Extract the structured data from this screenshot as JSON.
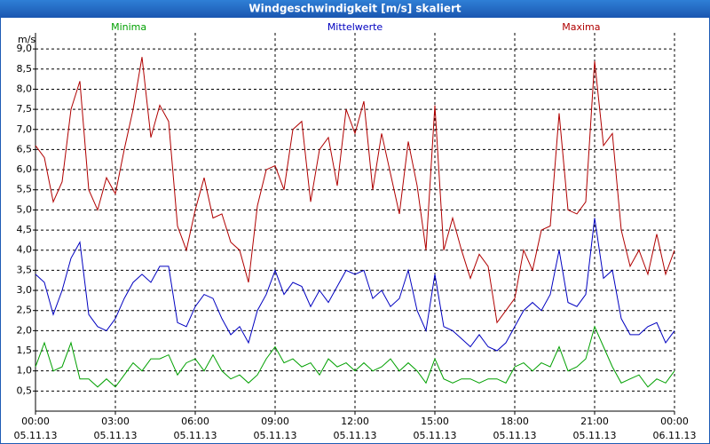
{
  "chart_data": {
    "type": "line",
    "title": "Windgeschwindigkeit [m/s] skaliert",
    "y_unit": "m/s",
    "x": [
      0,
      20,
      40,
      60,
      80,
      100,
      120,
      140,
      160,
      180,
      200,
      220,
      240,
      260,
      280,
      300,
      320,
      340,
      360,
      380,
      400,
      420,
      440,
      460,
      480,
      500,
      520,
      540,
      560,
      580,
      600,
      620,
      640,
      660,
      680,
      700,
      720,
      740,
      760,
      780,
      800,
      820,
      840,
      860,
      880,
      900,
      920,
      940,
      960,
      980,
      1000,
      1020,
      1040,
      1060,
      1080,
      1100,
      1120,
      1140,
      1160,
      1180,
      1200,
      1220,
      1240,
      1260,
      1280,
      1300,
      1320,
      1340,
      1360,
      1380,
      1400,
      1420,
      1440
    ],
    "xlim": [
      0,
      1440
    ],
    "xticks": [
      {
        "value": 0,
        "label": "00:00"
      },
      {
        "value": 180,
        "label": "03:00"
      },
      {
        "value": 360,
        "label": "06:00"
      },
      {
        "value": 540,
        "label": "09:00"
      },
      {
        "value": 720,
        "label": "12:00"
      },
      {
        "value": 900,
        "label": "15:00"
      },
      {
        "value": 1080,
        "label": "18:00"
      },
      {
        "value": 1260,
        "label": "21:00"
      },
      {
        "value": 1440,
        "label": "00:00"
      }
    ],
    "xtick_dates": [
      "05.11.13",
      "05.11.13",
      "05.11.13",
      "05.11.13",
      "05.11.13",
      "05.11.13",
      "05.11.13",
      "05.11.13",
      "06.11.13"
    ],
    "ylim": [
      0,
      9.4
    ],
    "yticks": [
      {
        "value": 0.5,
        "label": "0,5"
      },
      {
        "value": 1,
        "label": "1,0"
      },
      {
        "value": 1.5,
        "label": "1,5"
      },
      {
        "value": 2,
        "label": "2,0"
      },
      {
        "value": 2.5,
        "label": "2,5"
      },
      {
        "value": 3,
        "label": "3,0"
      },
      {
        "value": 3.5,
        "label": "3,5"
      },
      {
        "value": 4,
        "label": "4,0"
      },
      {
        "value": 4.5,
        "label": "4,5"
      },
      {
        "value": 5,
        "label": "5,0"
      },
      {
        "value": 5.5,
        "label": "5,5"
      },
      {
        "value": 6,
        "label": "6,0"
      },
      {
        "value": 6.5,
        "label": "6,5"
      },
      {
        "value": 7,
        "label": "7,0"
      },
      {
        "value": 7.5,
        "label": "7,5"
      },
      {
        "value": 8,
        "label": "8,0"
      },
      {
        "value": 8.5,
        "label": "8,5"
      },
      {
        "value": 9,
        "label": "9,0"
      }
    ],
    "grid": true,
    "series": [
      {
        "name": "Minima",
        "color": "#00a000",
        "values": [
          1.1,
          1.7,
          1.0,
          1.1,
          1.7,
          0.8,
          0.8,
          0.6,
          0.8,
          0.6,
          0.9,
          1.2,
          1.0,
          1.3,
          1.3,
          1.4,
          0.9,
          1.2,
          1.3,
          1.0,
          1.4,
          1.0,
          0.8,
          0.9,
          0.7,
          0.9,
          1.3,
          1.6,
          1.2,
          1.3,
          1.1,
          1.2,
          0.9,
          1.3,
          1.1,
          1.2,
          1.0,
          1.2,
          1.0,
          1.1,
          1.3,
          1.0,
          1.2,
          1.0,
          0.7,
          1.3,
          0.8,
          0.7,
          0.8,
          0.8,
          0.7,
          0.8,
          0.8,
          0.7,
          1.1,
          1.2,
          1.0,
          1.2,
          1.1,
          1.6,
          1.0,
          1.1,
          1.3,
          2.1,
          1.6,
          1.1,
          0.7,
          0.8,
          0.9,
          0.6,
          0.8,
          0.7,
          1.0
        ]
      },
      {
        "name": "Mittelwerte",
        "color": "#0000c0",
        "values": [
          3.4,
          3.2,
          2.4,
          3.0,
          3.8,
          4.2,
          2.4,
          2.1,
          2.0,
          2.3,
          2.8,
          3.2,
          3.4,
          3.2,
          3.6,
          3.6,
          2.2,
          2.1,
          2.6,
          2.9,
          2.8,
          2.3,
          1.9,
          2.1,
          1.7,
          2.5,
          2.9,
          3.5,
          2.9,
          3.2,
          3.1,
          2.6,
          3.0,
          2.7,
          3.1,
          3.5,
          3.4,
          3.5,
          2.8,
          3.0,
          2.6,
          2.8,
          3.5,
          2.5,
          2.0,
          3.4,
          2.1,
          2.0,
          1.8,
          1.6,
          1.9,
          1.6,
          1.5,
          1.7,
          2.1,
          2.5,
          2.7,
          2.5,
          2.9,
          4.0,
          2.7,
          2.6,
          2.9,
          4.8,
          3.3,
          3.5,
          2.3,
          1.9,
          1.9,
          2.1,
          2.2,
          1.7,
          2.0
        ]
      },
      {
        "name": "Maxima",
        "color": "#b00000",
        "values": [
          6.6,
          6.3,
          5.2,
          5.7,
          7.5,
          8.2,
          5.5,
          5.0,
          5.8,
          5.4,
          6.5,
          7.5,
          8.8,
          6.8,
          7.6,
          7.2,
          4.6,
          4.0,
          5.0,
          5.8,
          4.8,
          4.9,
          4.2,
          4.0,
          3.2,
          5.1,
          6.0,
          6.1,
          5.5,
          7.0,
          7.2,
          5.2,
          6.5,
          6.8,
          5.6,
          7.5,
          6.9,
          7.7,
          5.5,
          6.9,
          5.9,
          4.9,
          6.7,
          5.6,
          4.0,
          7.6,
          4.0,
          4.8,
          4.0,
          3.3,
          3.9,
          3.6,
          2.2,
          2.5,
          2.8,
          4.0,
          3.5,
          4.5,
          4.6,
          7.4,
          5.0,
          4.9,
          5.2,
          8.7,
          6.6,
          6.9,
          4.5,
          3.6,
          4.0,
          3.4,
          4.4,
          3.4,
          4.0
        ]
      }
    ]
  }
}
